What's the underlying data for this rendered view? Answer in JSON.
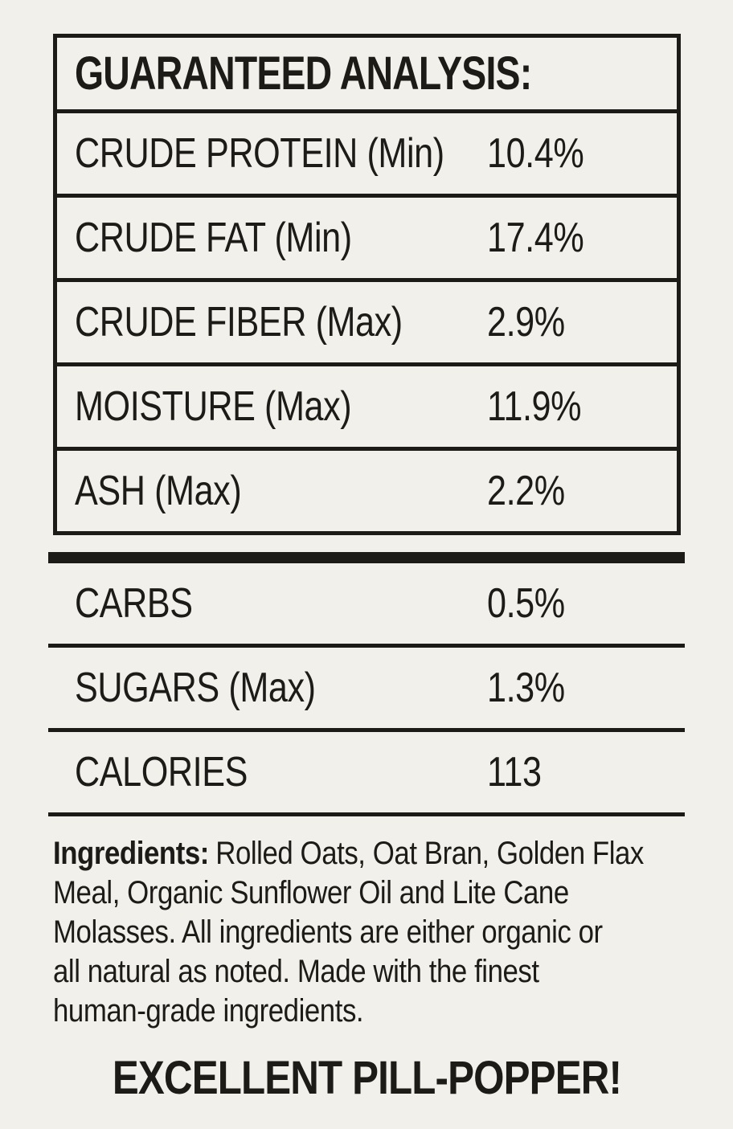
{
  "palette": {
    "background": "#f2f0ea",
    "ink": "#1d1b18"
  },
  "guaranteed_analysis": {
    "title": "GUARANTEED ANALYSIS:",
    "rows": [
      {
        "label": "CRUDE PROTEIN (Min)",
        "value": "10.4%"
      },
      {
        "label": "CRUDE FAT (Min)",
        "value": "17.4%"
      },
      {
        "label": "CRUDE FIBER (Max)",
        "value": "2.9%"
      },
      {
        "label": "MOISTURE (Max)",
        "value": "11.9%"
      },
      {
        "label": "ASH (Max)",
        "value": "2.2%"
      }
    ]
  },
  "additional_facts": {
    "rows": [
      {
        "label": "CARBS",
        "value": "0.5%"
      },
      {
        "label": "SUGARS (Max)",
        "value": "1.3%"
      },
      {
        "label": "CALORIES",
        "value": "113"
      }
    ]
  },
  "ingredients": {
    "heading": "Ingredients:",
    "lines": [
      "Rolled Oats, Oat Bran, Golden Flax",
      "Meal, Organic Sunflower Oil and Lite Cane",
      "Molasses. All ingredients are either organic or",
      "all natural as noted. Made with the finest",
      "human-grade ingredients."
    ]
  },
  "footer": {
    "headline": "EXCELLENT PILL-POPPER!"
  }
}
